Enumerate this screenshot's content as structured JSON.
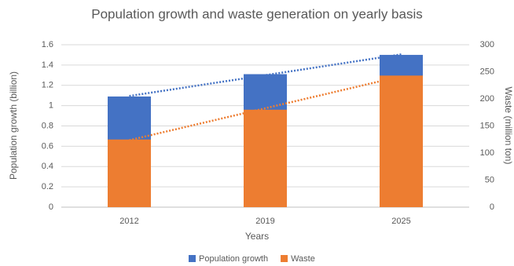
{
  "chart_data": {
    "type": "bar",
    "title": "Population growth and waste generation on yearly basis",
    "xlabel": "Years",
    "ylabel": "Population growth (billion)",
    "y2label": "Waste (million ton)",
    "categories": [
      "2012",
      "2019",
      "2025"
    ],
    "series": [
      {
        "name": "Population growth",
        "color": "#4472c4",
        "values": [
          1.09,
          1.31,
          1.5
        ],
        "trendline": true
      },
      {
        "name": "Waste",
        "color": "#ed7d31",
        "values": [
          125,
          180,
          243
        ],
        "axis": "y2",
        "trendline": true
      }
    ],
    "ylim": [
      0,
      1.6
    ],
    "yticks": [
      0,
      0.2,
      0.4,
      0.6,
      0.8,
      1,
      1.2,
      1.4,
      1.6
    ],
    "y2lim": [
      0,
      300
    ],
    "y2ticks": [
      0,
      50,
      100,
      150,
      200,
      250,
      300
    ],
    "grid": true,
    "legend": "bottom"
  }
}
